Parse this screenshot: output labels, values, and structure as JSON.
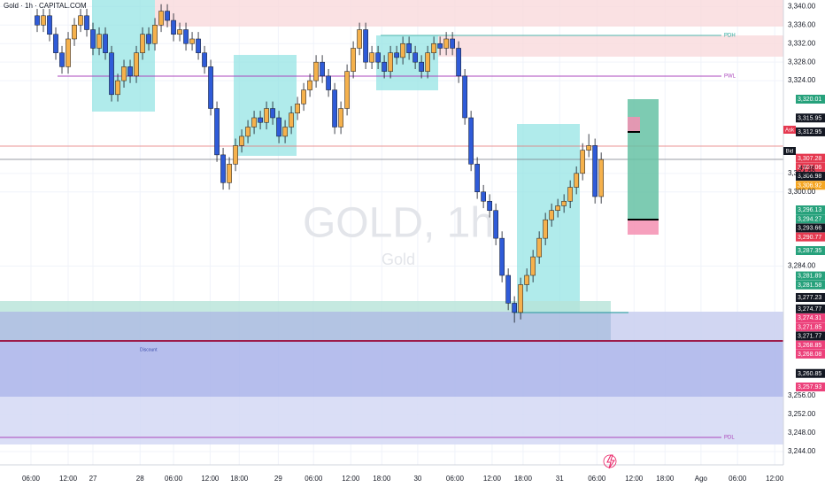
{
  "chart_data": {
    "type": "candlestick",
    "title": "Gold · 1h · CAPITAL.COM",
    "watermark": "GOLD, 1h",
    "watermark_sub": "Gold",
    "up_color": "#f5b14c",
    "down_color": "#2f5bd8",
    "xlim": [
      0,
      126.4
    ],
    "ylim": [
      3242.6,
      3341.4
    ],
    "grid": true,
    "xticks": [
      {
        "value": 5,
        "label": "06:00"
      },
      {
        "value": 11,
        "label": "12:00"
      },
      {
        "value": 15,
        "label": "27"
      },
      {
        "value": 22.6,
        "label": "28"
      },
      {
        "value": 28,
        "label": "06:00"
      },
      {
        "value": 33.9,
        "label": "12:00"
      },
      {
        "value": 38.6,
        "label": "18:00"
      },
      {
        "value": 44.9,
        "label": "29"
      },
      {
        "value": 50.6,
        "label": "06:00"
      },
      {
        "value": 56.6,
        "label": "12:00"
      },
      {
        "value": 61.6,
        "label": "18:00"
      },
      {
        "value": 67.4,
        "label": "30"
      },
      {
        "value": 73.4,
        "label": "06:00"
      },
      {
        "value": 79.4,
        "label": "12:00"
      },
      {
        "value": 84.4,
        "label": "18:00"
      },
      {
        "value": 90.3,
        "label": "31"
      },
      {
        "value": 96.3,
        "label": "06:00"
      },
      {
        "value": 102.3,
        "label": "12:00"
      },
      {
        "value": 107.3,
        "label": "18:00"
      },
      {
        "value": 113.1,
        "label": "Ago"
      },
      {
        "value": 119,
        "label": "06:00"
      },
      {
        "value": 125,
        "label": "12:00"
      }
    ],
    "yticks": [
      {
        "value": 3340,
        "label": "3,340.00"
      },
      {
        "value": 3336,
        "label": "3,336.00"
      },
      {
        "value": 3332,
        "label": "3,332.00"
      },
      {
        "value": 3328,
        "label": "3,328.00"
      },
      {
        "value": 3324,
        "label": "3,324.00"
      },
      {
        "value": 3304,
        "label": "3,304.00"
      },
      {
        "value": 3300,
        "label": "3,300.00"
      },
      {
        "value": 3284,
        "label": "3,284.00"
      },
      {
        "value": 3256,
        "label": "3,256.00"
      },
      {
        "value": 3252,
        "label": "3,252.00"
      },
      {
        "value": 3248,
        "label": "3,248.00"
      },
      {
        "value": 3244,
        "label": "3,244.00"
      }
    ],
    "x": [
      6,
      7,
      8,
      9,
      10,
      11,
      12,
      13,
      14,
      15,
      16,
      17,
      18,
      19,
      20,
      21,
      22,
      23,
      24,
      25,
      26,
      27,
      28,
      29,
      30,
      31,
      32,
      33,
      34,
      35,
      36,
      37,
      38,
      39,
      40,
      41,
      42,
      43,
      44,
      45,
      46,
      47,
      48,
      49,
      50,
      51,
      52,
      53,
      54,
      55,
      56,
      57,
      58,
      59,
      60,
      61,
      62,
      63,
      64,
      65,
      66,
      67,
      68,
      69,
      70,
      71,
      72,
      73,
      74,
      75,
      76,
      77,
      78,
      79,
      80,
      81,
      82,
      83,
      84,
      85,
      86,
      87,
      88,
      89,
      90,
      91,
      92,
      93,
      94,
      95,
      96,
      97
    ],
    "open": [
      3338,
      3336,
      3338,
      3334,
      3330,
      3327,
      3333,
      3336,
      3338,
      3335,
      3331,
      3334,
      3330,
      3321,
      3324,
      3327,
      3325,
      3330,
      3334,
      3332,
      3336,
      3339,
      3337,
      3334,
      3335,
      3332,
      3333,
      3330,
      3327,
      3318,
      3308,
      3302,
      3306,
      3310,
      3312,
      3314,
      3316,
      3315,
      3318,
      3316,
      3312,
      3314,
      3317,
      3319,
      3322,
      3324,
      3328,
      3325,
      3322,
      3314,
      3318,
      3326,
      3331,
      3335,
      3328,
      3330,
      3328,
      3326,
      3330,
      3329,
      3332,
      3330,
      3328,
      3326,
      3330,
      3332,
      3331,
      3333,
      3331,
      3325,
      3316,
      3306,
      3300,
      3298,
      3296,
      3290,
      3282,
      3276,
      3274,
      3280,
      3282,
      3286,
      3290,
      3294,
      3296,
      3297,
      3298,
      3301,
      3304,
      3309,
      3310,
      3299
    ],
    "high": [
      3339.5,
      3339.5,
      3339.5,
      3335.5,
      3331.5,
      3334.5,
      3337.5,
      3339.5,
      3339.5,
      3336.5,
      3335.5,
      3335.5,
      3331.5,
      3325.5,
      3328.5,
      3328.5,
      3331.5,
      3335.5,
      3335.5,
      3337.5,
      3340.5,
      3340.5,
      3338.5,
      3336.5,
      3336.5,
      3334.5,
      3334.5,
      3331.5,
      3328.5,
      3319.5,
      3309.5,
      3307.5,
      3311.5,
      3313.5,
      3315.5,
      3317.5,
      3317.5,
      3319.5,
      3319.5,
      3317.5,
      3315.5,
      3318.5,
      3320.5,
      3323.5,
      3325.5,
      3329.5,
      3329.5,
      3326.5,
      3323.5,
      3319.5,
      3327.5,
      3332.5,
      3336.5,
      3336.5,
      3331.5,
      3331.5,
      3329.5,
      3331.5,
      3331.5,
      3333.5,
      3333.5,
      3331.5,
      3329.5,
      3331.5,
      3333.5,
      3333.5,
      3334.5,
      3334.5,
      3332.5,
      3326.5,
      3317.5,
      3307.5,
      3301.5,
      3299.5,
      3297.5,
      3291.5,
      3283.5,
      3277.5,
      3281.5,
      3283.5,
      3287.5,
      3291.5,
      3295.5,
      3297.5,
      3298.5,
      3299.5,
      3302.5,
      3305.5,
      3310.5,
      3312.5,
      3311.5,
      3308.5
    ],
    "low": [
      3334.5,
      3334.5,
      3332.5,
      3328.5,
      3325.5,
      3325.5,
      3331.5,
      3334.5,
      3333.5,
      3329.5,
      3329.5,
      3328.5,
      3319.5,
      3319.5,
      3322.5,
      3323.5,
      3323.5,
      3328.5,
      3330.5,
      3330.5,
      3334.5,
      3335.5,
      3332.5,
      3332.5,
      3330.5,
      3330.5,
      3328.5,
      3325.5,
      3316.5,
      3306.5,
      3300.5,
      3300.5,
      3304.5,
      3308.5,
      3310.5,
      3312.5,
      3313.5,
      3313.5,
      3314.5,
      3310.5,
      3310.5,
      3312.5,
      3315.5,
      3317.5,
      3320.5,
      3322.5,
      3323.5,
      3320.5,
      3312.5,
      3312.5,
      3316.5,
      3324.5,
      3329.5,
      3326.5,
      3326.5,
      3326.5,
      3324.5,
      3324.5,
      3327.5,
      3327.5,
      3328.5,
      3326.5,
      3324.5,
      3324.5,
      3328.5,
      3329.5,
      3329.5,
      3329.5,
      3323.5,
      3314.5,
      3304.5,
      3298.5,
      3296.5,
      3294.5,
      3288.5,
      3280.5,
      3274.5,
      3271.8,
      3272.5,
      3278.5,
      3280.5,
      3284.5,
      3288.5,
      3292.5,
      3294.5,
      3295.5,
      3296.5,
      3299.5,
      3302.5,
      3307.5,
      3297.5,
      3297.5
    ],
    "close": [
      3336,
      3338,
      3334,
      3330,
      3327,
      3333,
      3336,
      3338,
      3335,
      3331,
      3334,
      3330,
      3321,
      3324,
      3327,
      3325,
      3330,
      3334,
      3332,
      3336,
      3339,
      3337,
      3334,
      3335,
      3332,
      3333,
      3330,
      3327,
      3318,
      3308,
      3302,
      3306,
      3310,
      3312,
      3314,
      3316,
      3315,
      3318,
      3316,
      3312,
      3314,
      3317,
      3319,
      3322,
      3324,
      3328,
      3325,
      3322,
      3314,
      3318,
      3326,
      3331,
      3335,
      3328,
      3330,
      3328,
      3326,
      3330,
      3329,
      3332,
      3330,
      3328,
      3326,
      3330,
      3332,
      3331,
      3333,
      3331,
      3325,
      3316,
      3306,
      3300,
      3298,
      3296,
      3290,
      3282,
      3276,
      3274,
      3280,
      3282,
      3286,
      3290,
      3294,
      3296,
      3297,
      3298,
      3301,
      3304,
      3309,
      3310,
      3299,
      3307
    ],
    "price_tags": [
      {
        "value": 3320.01,
        "label": "3,320.01",
        "color": "#26a17b"
      },
      {
        "value": 3315.95,
        "label": "3,315.95",
        "color": "#131722"
      },
      {
        "value": 3312.95,
        "label": "3,312.95",
        "color": "#131722"
      },
      {
        "value": 3307.28,
        "label": "3,307.28",
        "color": "#e53950"
      },
      {
        "value": 3307.06,
        "label": "3,307.06",
        "color": "#e53950"
      },
      {
        "value": 3306.98,
        "label": "3,306.98",
        "color": "#131722"
      },
      {
        "value": 3306.92,
        "label": "3,306.92",
        "color": "#f5a623"
      },
      {
        "value": 3296.13,
        "label": "3,296.13",
        "color": "#26a17b"
      },
      {
        "value": 3294.27,
        "label": "3,294.27",
        "color": "#26a17b"
      },
      {
        "value": 3293.66,
        "label": "3,293.66",
        "color": "#131722"
      },
      {
        "value": 3290.77,
        "label": "3,290.77",
        "color": "#e53950"
      },
      {
        "value": 3287.35,
        "label": "3,287.35",
        "color": "#26a17b"
      },
      {
        "value": 3281.89,
        "label": "3,281.89",
        "color": "#26a17b"
      },
      {
        "value": 3281.58,
        "label": "3,281.58",
        "color": "#26a17b"
      },
      {
        "value": 3277.23,
        "label": "3,277.23",
        "color": "#131722"
      },
      {
        "value": 3274.77,
        "label": "3,274.77",
        "color": "#131722"
      },
      {
        "value": 3274.31,
        "label": "3,274.31",
        "color": "#ec407a"
      },
      {
        "value": 3271.85,
        "label": "3,271.85",
        "color": "#ec407a"
      },
      {
        "value": 3271.77,
        "label": "3,271.77",
        "color": "#131722"
      },
      {
        "value": 3268.85,
        "label": "3,268.85",
        "color": "#ec407a"
      },
      {
        "value": 3268.08,
        "label": "3,268.08",
        "color": "#ec407a"
      },
      {
        "value": 3260.85,
        "label": "3,260.85",
        "color": "#131722"
      },
      {
        "value": 3257.93,
        "label": "3,257.93",
        "color": "#ec407a"
      }
    ],
    "annotations": [
      "PDH",
      "PWL",
      "PDL",
      "Discount",
      "Ask",
      "Bid",
      "47:38"
    ]
  }
}
